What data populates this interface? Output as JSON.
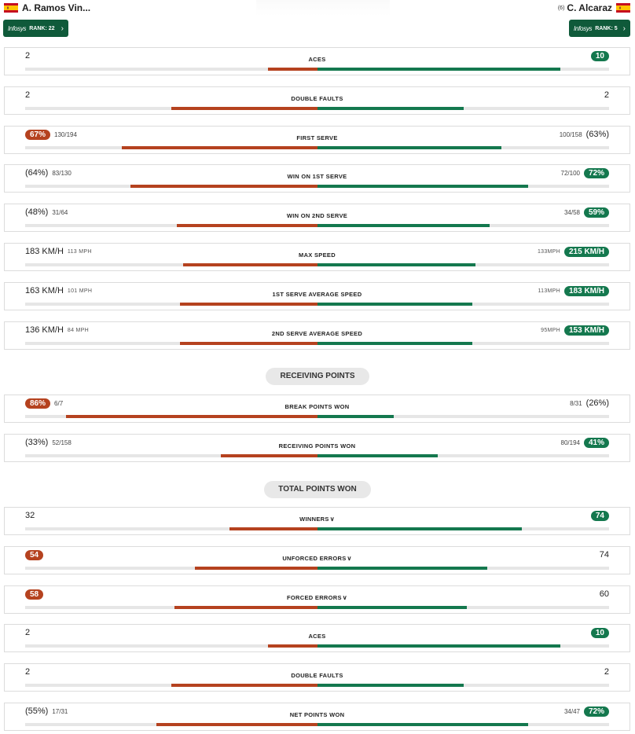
{
  "header": {
    "left_player": {
      "name": "A. Ramos Vin...",
      "rank_brand": "Infosys",
      "rank_text": "RANK: 22"
    },
    "right_player": {
      "seed": "(6)",
      "name": "C. Alcaraz",
      "rank_brand": "Infosys",
      "rank_text": "RANK: 5"
    }
  },
  "colors": {
    "left": "#b5421f",
    "right": "#14784e",
    "rank_bg": "#0f5a3a"
  },
  "serve_stats": [
    {
      "label": "ACES",
      "left": {
        "main": "2"
      },
      "right": {
        "main": "10",
        "pill": true
      },
      "left_share": 0.17,
      "right_share": 0.83
    },
    {
      "label": "DOUBLE FAULTS",
      "left": {
        "main": "2"
      },
      "right": {
        "main": "2"
      },
      "left_share": 0.5,
      "right_share": 0.5
    },
    {
      "label": "FIRST SERVE",
      "left": {
        "main": "67%",
        "pill": true,
        "sub": "130/194"
      },
      "right": {
        "main": "(63%)",
        "sub": "100/158"
      },
      "left_share": 0.67,
      "right_share": 0.63
    },
    {
      "label": "WIN ON 1ST SERVE",
      "left": {
        "main": "(64%)",
        "sub": "83/130"
      },
      "right": {
        "main": "72%",
        "pill": true,
        "sub": "72/100"
      },
      "left_share": 0.64,
      "right_share": 0.72
    },
    {
      "label": "WIN ON 2ND SERVE",
      "left": {
        "main": "(48%)",
        "sub": "31/64"
      },
      "right": {
        "main": "59%",
        "pill": true,
        "sub": "34/58"
      },
      "left_share": 0.48,
      "right_share": 0.59
    },
    {
      "label": "MAX SPEED",
      "left": {
        "main": "183 KM/H",
        "unit": "113 MPH"
      },
      "right": {
        "main": "215 KM/H",
        "pill": true,
        "unit": "133MPH"
      },
      "left_share": 0.46,
      "right_share": 0.54
    },
    {
      "label": "1ST SERVE AVERAGE SPEED",
      "left": {
        "main": "163 KM/H",
        "unit": "101 MPH"
      },
      "right": {
        "main": "183 KM/H",
        "pill": true,
        "unit": "113MPH"
      },
      "left_share": 0.47,
      "right_share": 0.53
    },
    {
      "label": "2ND SERVE AVERAGE SPEED",
      "left": {
        "main": "136 KM/H",
        "unit": "84 MPH"
      },
      "right": {
        "main": "153 KM/H",
        "pill": true,
        "unit": "95MPH"
      },
      "left_share": 0.47,
      "right_share": 0.53
    }
  ],
  "receiving_title": "RECEIVING POINTS",
  "receiving_stats": [
    {
      "label": "BREAK POINTS WON",
      "left": {
        "main": "86%",
        "pill": true,
        "sub": "6/7"
      },
      "right": {
        "main": "(26%)",
        "sub": "8/31"
      },
      "left_share": 0.86,
      "right_share": 0.26
    },
    {
      "label": "RECEIVING POINTS WON",
      "left": {
        "main": "(33%)",
        "sub": "52/158"
      },
      "right": {
        "main": "41%",
        "pill": true,
        "sub": "80/194"
      },
      "left_share": 0.33,
      "right_share": 0.41
    }
  ],
  "total_title": "TOTAL POINTS WON",
  "total_stats": [
    {
      "label": "WINNERS",
      "expand": true,
      "left": {
        "main": "32"
      },
      "right": {
        "main": "74",
        "pill": true
      },
      "left_share": 0.3,
      "right_share": 0.7
    },
    {
      "label": "UNFORCED ERRORS",
      "expand": true,
      "left": {
        "main": "54",
        "pill": true
      },
      "right": {
        "main": "74"
      },
      "left_share": 0.42,
      "right_share": 0.58
    },
    {
      "label": "FORCED ERRORS",
      "expand": true,
      "left": {
        "main": "58",
        "pill": true
      },
      "right": {
        "main": "60"
      },
      "left_share": 0.49,
      "right_share": 0.51
    },
    {
      "label": "ACES",
      "left": {
        "main": "2"
      },
      "right": {
        "main": "10",
        "pill": true
      },
      "left_share": 0.17,
      "right_share": 0.83
    },
    {
      "label": "DOUBLE FAULTS",
      "left": {
        "main": "2"
      },
      "right": {
        "main": "2"
      },
      "left_share": 0.5,
      "right_share": 0.5
    },
    {
      "label": "NET POINTS WON",
      "left": {
        "main": "(55%)",
        "sub": "17/31"
      },
      "right": {
        "main": "72%",
        "pill": true,
        "sub": "34/47"
      },
      "left_share": 0.55,
      "right_share": 0.72
    }
  ]
}
